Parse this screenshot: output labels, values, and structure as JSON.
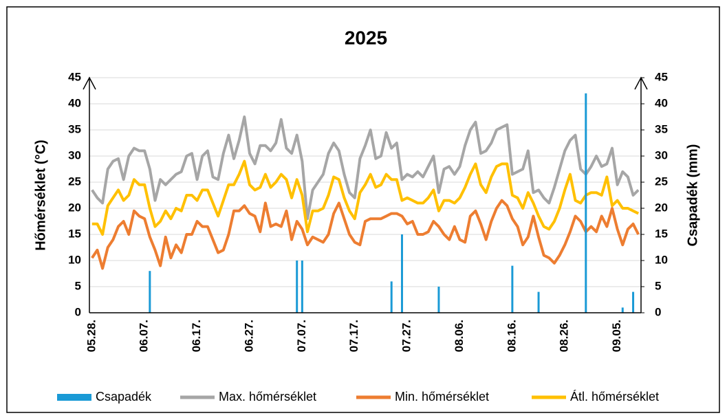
{
  "chart_data": {
    "type": "combo",
    "title": "2025",
    "ylabel": "Hőmérséklet (°C)",
    "y2label": "Csapadék (mm)",
    "categories": [
      "05.28.",
      null,
      null,
      null,
      null,
      null,
      null,
      null,
      null,
      null,
      "06.07.",
      null,
      null,
      null,
      null,
      null,
      null,
      null,
      null,
      null,
      "06.17.",
      null,
      null,
      null,
      null,
      null,
      null,
      null,
      null,
      null,
      "06.27.",
      null,
      null,
      null,
      null,
      null,
      null,
      null,
      null,
      null,
      "07.07.",
      null,
      null,
      null,
      null,
      null,
      null,
      null,
      null,
      null,
      "07.17.",
      null,
      null,
      null,
      null,
      null,
      null,
      null,
      null,
      null,
      "07.27.",
      null,
      null,
      null,
      null,
      null,
      null,
      null,
      null,
      null,
      "08.06.",
      null,
      null,
      null,
      null,
      null,
      null,
      null,
      null,
      null,
      "08.16.",
      null,
      null,
      null,
      null,
      null,
      null,
      null,
      null,
      null,
      "08.26.",
      null,
      null,
      null,
      null,
      null,
      null,
      null,
      null,
      null,
      "09.05.",
      null,
      null,
      null,
      null
    ],
    "ylim": [
      0,
      45
    ],
    "yticks": [
      0,
      5,
      10,
      15,
      20,
      25,
      30,
      35,
      40,
      45
    ],
    "y2lim": [
      0,
      45
    ],
    "y2ticks": [
      0,
      5,
      10,
      15,
      20,
      25,
      30,
      35,
      40,
      45
    ],
    "series": [
      {
        "name": "Csapadék",
        "kind": "bar",
        "axis": "y2",
        "color": "#1a9ad6",
        "values": [
          0,
          0,
          0,
          0,
          0,
          0,
          0,
          0,
          0,
          0,
          0,
          8,
          0,
          0,
          0,
          0,
          0,
          0,
          0,
          0,
          0,
          0,
          0,
          0,
          0,
          0,
          0,
          0,
          0,
          0,
          0,
          0,
          0,
          0,
          0,
          0,
          0,
          0,
          0,
          10,
          10,
          0,
          0,
          0,
          0,
          0,
          0,
          0,
          0,
          0,
          0,
          0,
          0,
          0,
          0,
          0,
          0,
          6,
          0,
          15,
          0,
          0,
          0,
          0,
          0,
          0,
          5,
          0,
          0,
          0,
          0,
          0,
          0,
          0,
          0,
          0,
          0,
          0,
          0,
          0,
          9,
          0,
          0,
          0,
          0,
          4,
          0,
          0,
          0,
          0,
          0,
          0,
          0,
          0,
          42,
          0,
          0,
          0,
          0,
          0,
          0,
          1,
          0,
          4,
          0
        ]
      },
      {
        "name": "Max. hőmérséklet",
        "kind": "line",
        "color": "#a6a6a6",
        "values": [
          23.5,
          22,
          21,
          27.5,
          29,
          29.5,
          25.5,
          30,
          31.5,
          31,
          31,
          27.5,
          21.5,
          25.5,
          24.5,
          25.5,
          26.5,
          27,
          30,
          30.5,
          25.5,
          30,
          31,
          26,
          25.5,
          30.5,
          34,
          29.5,
          33,
          37.5,
          30.5,
          28.5,
          32,
          32,
          31,
          32.5,
          37,
          31.5,
          30.5,
          34,
          29,
          18,
          23.5,
          25,
          26.5,
          30.5,
          32.5,
          31,
          26.5,
          23,
          22,
          29.5,
          32,
          35,
          29.5,
          30,
          34.5,
          31.5,
          32.5,
          25.5,
          26.5,
          26,
          27,
          26,
          28,
          30,
          23,
          27.5,
          28,
          26.5,
          28,
          32,
          35,
          36.5,
          30.5,
          31,
          32.5,
          35,
          35.5,
          36,
          26.5,
          27,
          27.5,
          31,
          23,
          23.5,
          22,
          21,
          24,
          27.5,
          31,
          33,
          34,
          27.5,
          26.5,
          28,
          30,
          28,
          28.5,
          31.5,
          24.5,
          27,
          26,
          22.5,
          23.5
        ]
      },
      {
        "name": "Min. hőmérséklet",
        "kind": "line",
        "color": "#ed7d31",
        "values": [
          10.5,
          12,
          8.5,
          12.5,
          14,
          16.5,
          17.5,
          15,
          19.5,
          18.5,
          18,
          14.5,
          12,
          9,
          14.5,
          10.5,
          13,
          11.5,
          15,
          15,
          17.5,
          16.5,
          16.5,
          14,
          11.5,
          12,
          15,
          19.5,
          19.5,
          20.5,
          19,
          18.5,
          15.5,
          21,
          16.5,
          17,
          16.5,
          19.5,
          14,
          17.5,
          16,
          13,
          14.5,
          14,
          13.5,
          15,
          19,
          21,
          18,
          15,
          13.5,
          13,
          17.5,
          18,
          18,
          18,
          18.5,
          19,
          19,
          18.5,
          17,
          17.5,
          15,
          15,
          15.5,
          17.5,
          16.5,
          15,
          14,
          16.5,
          14,
          13.5,
          18.5,
          19.5,
          17,
          14,
          17.5,
          20,
          21.5,
          20.5,
          18,
          16.5,
          13,
          14.5,
          18.5,
          14.5,
          11,
          10.5,
          9.5,
          11,
          13,
          15.5,
          18.5,
          17.5,
          15.5,
          16.5,
          15.5,
          18.5,
          16.5,
          20,
          16,
          13,
          16,
          17,
          15
        ]
      },
      {
        "name": "Átl. hőmérséklet",
        "kind": "line",
        "color": "#ffc000",
        "values": [
          17,
          17,
          15,
          20.5,
          22,
          23.5,
          21.5,
          22.5,
          25.5,
          24.5,
          24.5,
          20,
          16.5,
          17.5,
          19.5,
          18,
          20,
          19.5,
          22.5,
          22.5,
          21.5,
          23.5,
          23.5,
          21,
          18.5,
          21.5,
          24.5,
          24.5,
          26.5,
          29,
          24.5,
          23.5,
          24,
          26.5,
          24,
          25,
          26.5,
          25.5,
          22,
          25.5,
          22.5,
          15.5,
          19.5,
          19.5,
          20,
          22.5,
          26,
          25.5,
          22,
          19.5,
          18,
          23,
          24.5,
          26.5,
          24,
          24.5,
          26.5,
          25.5,
          25.5,
          21.5,
          22,
          21.5,
          21,
          21,
          22,
          23.5,
          19.5,
          21.5,
          21.5,
          21,
          22,
          24,
          26.5,
          28.5,
          24.5,
          23,
          26,
          28,
          28.5,
          28.5,
          22.5,
          22,
          20,
          23,
          21,
          18.5,
          16.5,
          16,
          17.5,
          20,
          23.5,
          26.5,
          21.5,
          21,
          22.5,
          23,
          23,
          22.5,
          26,
          20.5,
          21.5,
          20,
          20,
          19.5,
          19
        ]
      }
    ],
    "grid": true,
    "legend": "bottom"
  }
}
